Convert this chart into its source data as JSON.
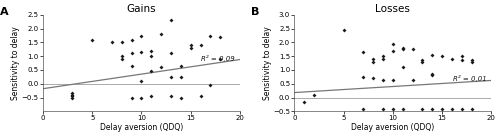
{
  "gains": {
    "title": "Gains",
    "panel_label": "A",
    "xlabel": "Delay aversion (QDQ)",
    "ylabel": "Sensitivity to delay",
    "xlim": [
      0,
      20
    ],
    "ylim": [
      -1,
      2.5
    ],
    "yticks": [
      -0.5,
      0,
      0.5,
      1,
      1.5,
      2,
      2.5
    ],
    "xticks": [
      0,
      5,
      10,
      15,
      20
    ],
    "r2_label": "R² = 0,09",
    "r2_x": 19.5,
    "r2_y": 0.78,
    "line_x": [
      0,
      20
    ],
    "line_y": [
      -0.18,
      0.88
    ],
    "scatter_x": [
      3,
      3,
      3,
      3,
      5,
      7,
      8,
      8,
      8,
      9,
      9,
      9,
      9,
      10,
      10,
      10,
      10,
      11,
      11,
      11,
      11,
      12,
      12,
      13,
      13,
      13,
      13,
      14,
      14,
      14,
      15,
      15,
      16,
      16,
      17,
      17,
      18,
      18
    ],
    "scatter_y": [
      -0.5,
      -0.45,
      -0.4,
      -0.35,
      1.6,
      1.5,
      1.5,
      1.0,
      0.9,
      1.6,
      1.1,
      0.65,
      -0.5,
      1.75,
      1.15,
      0.1,
      -0.5,
      1.2,
      1.0,
      0.45,
      -0.45,
      1.8,
      0.6,
      2.3,
      1.1,
      0.25,
      -0.45,
      0.65,
      0.25,
      -0.5,
      1.4,
      1.3,
      1.4,
      -0.45,
      1.75,
      -0.05,
      1.7,
      0.9
    ]
  },
  "losses": {
    "title": "Losses",
    "panel_label": "B",
    "xlabel": "Delay aversion (QDQ)",
    "ylabel": "Sensitivity to delay",
    "xlim": [
      0,
      20
    ],
    "ylim": [
      -0.5,
      3
    ],
    "yticks": [
      -0.5,
      0,
      0.5,
      1,
      1.5,
      2,
      2.5,
      3
    ],
    "xticks": [
      0,
      5,
      10,
      15,
      20
    ],
    "r2_label": "R² = 0,01",
    "r2_x": 19.5,
    "r2_y": 0.55,
    "line_x": [
      0,
      20
    ],
    "line_y": [
      0.18,
      0.62
    ],
    "scatter_x": [
      1,
      2,
      5,
      7,
      7,
      7,
      8,
      8,
      8,
      9,
      9,
      9,
      9,
      10,
      10,
      10,
      10,
      11,
      11,
      11,
      11,
      12,
      12,
      13,
      13,
      13,
      14,
      14,
      14,
      14,
      15,
      15,
      16,
      16,
      17,
      17,
      17,
      18,
      18,
      18
    ],
    "scatter_y": [
      -0.15,
      0.1,
      2.45,
      1.65,
      0.75,
      -0.4,
      1.4,
      1.3,
      0.7,
      1.5,
      1.4,
      0.65,
      -0.4,
      1.95,
      1.7,
      0.65,
      -0.4,
      1.8,
      1.75,
      1.1,
      -0.4,
      1.75,
      0.65,
      1.35,
      1.3,
      -0.4,
      1.55,
      0.85,
      0.8,
      -0.4,
      1.5,
      -0.4,
      1.4,
      -0.4,
      1.5,
      1.35,
      -0.4,
      1.35,
      1.3,
      -0.4
    ]
  },
  "scatter_color": "#1a1a1a",
  "line_color": "#777777",
  "zero_line_color": "#aaaaaa",
  "bg_color": "#ffffff",
  "title_fontsize": 7.5,
  "label_fontsize": 5.5,
  "tick_fontsize": 5.0,
  "annotation_fontsize": 5.0,
  "panel_label_fontsize": 8
}
